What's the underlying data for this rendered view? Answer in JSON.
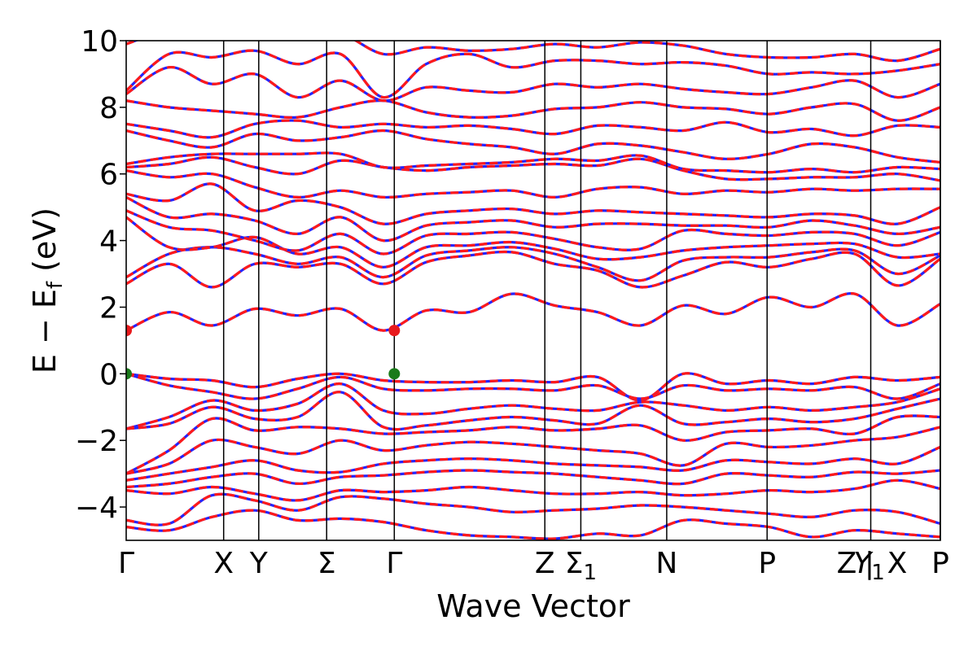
{
  "chart_data": {
    "type": "line",
    "title": "",
    "xlabel": "Wave Vector",
    "ylabel": {
      "prefix": "E − E",
      "sub": "f",
      "suffix": " (eV)"
    },
    "ylim": [
      -5,
      10
    ],
    "yticks": [
      -4,
      -2,
      0,
      2,
      4,
      6,
      8,
      10
    ],
    "ytick_labels": [
      "−4",
      "−2",
      "0",
      "2",
      "4",
      "6",
      "8",
      "10"
    ],
    "xlim": [
      0,
      1
    ],
    "kpoints": [
      {
        "label": "Γ",
        "pos": 0.0
      },
      {
        "label": "X",
        "pos": 0.1197
      },
      {
        "label": "Y",
        "pos": 0.1628
      },
      {
        "label": "Σ",
        "pos": 0.2462
      },
      {
        "label": "Γ",
        "pos": 0.3293
      },
      {
        "label": "Z",
        "pos": 0.5142
      },
      {
        "label": "Σ",
        "sub": "1",
        "pos": 0.5584
      },
      {
        "label": "N",
        "pos": 0.6639
      },
      {
        "label": "P",
        "pos": 0.7872
      },
      {
        "label": "Y",
        "sub": "1",
        "pos": 0.9145,
        "italic": true
      },
      {
        "label": "Z",
        "pos": 0.9145,
        "align": "after"
      },
      {
        "label": "|",
        "pos": 0.9998,
        "align": "sep"
      },
      {
        "label": "X",
        "pos": 0.9998,
        "align": "after2"
      },
      {
        "label": "P",
        "pos": 1.0
      }
    ],
    "boundaries": [
      0.1197,
      0.1628,
      0.2462,
      0.3293,
      0.5142,
      0.5584,
      0.6639,
      0.7872,
      0.9145,
      0.9998
    ],
    "special_points": [
      {
        "x": 0.0,
        "y": 1.3,
        "color": "#e8191c"
      },
      {
        "x": 0.3293,
        "y": 1.3,
        "color": "#e8191c"
      },
      {
        "x": 0.0,
        "y": 0.0,
        "color": "#1a7a1a"
      },
      {
        "x": 0.3293,
        "y": 0.0,
        "color": "#1a7a1a"
      }
    ],
    "series": [
      {
        "color": "#2424ff",
        "style": "solid"
      },
      {
        "color": "#ff1a1a",
        "style": "dashed"
      }
    ],
    "bands": [
      [
        1.3,
        1.85,
        1.45,
        1.95,
        1.75,
        1.95,
        1.3,
        1.9,
        1.85,
        2.4,
        2.05,
        1.85,
        1.45,
        2.05,
        1.8,
        2.3,
        2.0,
        2.4,
        1.45,
        2.1
      ],
      [
        0.0,
        -0.15,
        -0.2,
        -0.4,
        -0.15,
        0.0,
        -0.2,
        -0.25,
        -0.25,
        -0.2,
        -0.25,
        -0.1,
        -0.8,
        0.0,
        -0.3,
        -0.2,
        -0.3,
        -0.1,
        -0.2,
        -0.1
      ],
      [
        0.0,
        -0.35,
        -0.55,
        -0.75,
        -0.45,
        -0.1,
        -0.45,
        -0.5,
        -0.45,
        -0.45,
        -0.5,
        -0.35,
        -0.75,
        -0.35,
        -0.5,
        -0.45,
        -0.5,
        -0.4,
        -0.75,
        -0.3
      ],
      [
        -1.65,
        -1.3,
        -0.8,
        -1.1,
        -0.9,
        -0.3,
        -1.1,
        -1.2,
        -1.05,
        -0.95,
        -1.05,
        -1.1,
        -0.85,
        -0.95,
        -1.1,
        -1.0,
        -1.1,
        -1.0,
        -0.85,
        -0.45
      ],
      [
        -1.65,
        -1.5,
        -1.0,
        -1.35,
        -1.3,
        -0.55,
        -1.6,
        -1.55,
        -1.4,
        -1.3,
        -1.4,
        -1.5,
        -0.95,
        -1.5,
        -1.45,
        -1.35,
        -1.45,
        -1.35,
        -1.05,
        -0.75
      ],
      [
        -3.0,
        -2.3,
        -1.35,
        -1.7,
        -1.6,
        -1.65,
        -1.8,
        -1.75,
        -1.7,
        -1.6,
        -1.7,
        -1.65,
        -1.55,
        -2.0,
        -1.75,
        -1.7,
        -1.65,
        -1.8,
        -1.3,
        -1.3
      ],
      [
        -3.0,
        -2.7,
        -2.0,
        -2.2,
        -2.4,
        -2.0,
        -2.3,
        -2.15,
        -2.05,
        -2.1,
        -2.2,
        -2.3,
        -2.4,
        -2.75,
        -2.1,
        -2.2,
        -2.15,
        -2.0,
        -1.9,
        -1.6
      ],
      [
        -3.2,
        -3.0,
        -2.8,
        -2.6,
        -2.9,
        -2.95,
        -2.7,
        -2.6,
        -2.55,
        -2.6,
        -2.7,
        -2.75,
        -2.8,
        -2.9,
        -2.6,
        -2.65,
        -2.7,
        -2.55,
        -2.7,
        -2.2
      ],
      [
        -3.4,
        -3.3,
        -3.1,
        -3.0,
        -3.3,
        -3.1,
        -3.05,
        -2.95,
        -2.9,
        -2.95,
        -3.0,
        -3.1,
        -3.2,
        -3.3,
        -3.0,
        -3.05,
        -3.1,
        -2.95,
        -3.0,
        -2.9
      ],
      [
        -3.5,
        -3.6,
        -3.4,
        -3.6,
        -3.8,
        -3.5,
        -3.55,
        -3.5,
        -3.4,
        -3.5,
        -3.6,
        -3.6,
        -3.55,
        -3.65,
        -3.6,
        -3.5,
        -3.55,
        -3.45,
        -3.2,
        -3.45
      ],
      [
        -4.4,
        -4.5,
        -3.65,
        -3.8,
        -4.1,
        -3.7,
        -3.75,
        -3.9,
        -4.0,
        -4.15,
        -4.1,
        -4.05,
        -3.95,
        -4.0,
        -4.1,
        -4.2,
        -4.3,
        -4.1,
        -4.15,
        -4.5
      ],
      [
        -4.6,
        -4.7,
        -4.3,
        -4.1,
        -4.4,
        -4.35,
        -4.45,
        -4.7,
        -4.85,
        -4.9,
        -4.95,
        -4.8,
        -4.85,
        -4.4,
        -4.5,
        -4.6,
        -4.9,
        -4.7,
        -4.8,
        -4.9
      ],
      [
        2.7,
        3.3,
        2.6,
        3.3,
        3.2,
        3.3,
        2.7,
        3.35,
        3.55,
        3.65,
        3.3,
        3.1,
        2.6,
        2.95,
        3.35,
        3.2,
        3.45,
        3.6,
        2.65,
        3.45
      ],
      [
        2.9,
        3.6,
        3.8,
        3.6,
        3.3,
        3.5,
        2.9,
        3.55,
        3.7,
        3.8,
        3.6,
        3.2,
        2.8,
        3.4,
        3.5,
        3.5,
        3.65,
        3.7,
        3.0,
        3.55
      ],
      [
        4.7,
        3.8,
        3.8,
        4.1,
        3.6,
        3.8,
        3.2,
        3.8,
        3.85,
        3.95,
        3.75,
        3.45,
        3.5,
        3.7,
        3.8,
        3.85,
        3.9,
        3.9,
        3.5,
        3.6
      ],
      [
        4.9,
        4.4,
        4.3,
        4.0,
        3.7,
        4.2,
        3.6,
        4.15,
        4.2,
        4.25,
        4.05,
        3.8,
        3.75,
        4.3,
        4.2,
        4.15,
        4.25,
        4.2,
        3.85,
        4.25
      ],
      [
        5.3,
        4.7,
        4.8,
        4.6,
        4.2,
        4.7,
        4.0,
        4.45,
        4.55,
        4.6,
        4.4,
        4.5,
        4.5,
        4.45,
        4.45,
        4.4,
        4.6,
        4.45,
        4.2,
        4.4
      ],
      [
        5.4,
        5.2,
        5.7,
        4.9,
        5.2,
        5.0,
        4.5,
        4.8,
        4.9,
        4.95,
        4.8,
        4.9,
        4.85,
        4.8,
        4.75,
        4.7,
        4.8,
        4.75,
        4.5,
        5.0
      ],
      [
        6.1,
        5.9,
        6.0,
        5.6,
        5.3,
        5.5,
        5.3,
        5.4,
        5.45,
        5.5,
        5.3,
        5.55,
        5.6,
        5.4,
        5.5,
        5.45,
        5.55,
        5.5,
        5.55,
        5.55
      ],
      [
        6.2,
        6.3,
        6.5,
        6.2,
        6.0,
        6.4,
        6.2,
        6.1,
        6.2,
        6.25,
        6.3,
        6.25,
        6.45,
        6.1,
        5.85,
        5.85,
        5.9,
        5.9,
        6.0,
        5.8
      ],
      [
        6.3,
        6.5,
        6.6,
        6.6,
        6.6,
        6.6,
        6.2,
        6.25,
        6.3,
        6.35,
        6.45,
        6.4,
        6.55,
        6.15,
        6.1,
        6.05,
        6.15,
        6.05,
        6.2,
        6.15
      ],
      [
        7.3,
        7.0,
        6.8,
        7.2,
        7.0,
        7.1,
        7.3,
        7.05,
        6.9,
        6.8,
        6.6,
        6.9,
        6.85,
        6.65,
        6.45,
        6.6,
        6.9,
        6.8,
        6.5,
        6.35
      ],
      [
        7.5,
        7.3,
        7.1,
        7.5,
        7.6,
        7.4,
        7.5,
        7.4,
        7.45,
        7.35,
        7.2,
        7.45,
        7.4,
        7.3,
        7.55,
        7.25,
        7.35,
        7.15,
        7.45,
        7.4
      ],
      [
        8.2,
        8.0,
        7.9,
        7.8,
        7.7,
        8.0,
        8.2,
        7.85,
        7.7,
        7.75,
        7.95,
        8.0,
        8.15,
        8.0,
        7.95,
        7.8,
        8.0,
        8.1,
        7.6,
        8.0
      ],
      [
        8.4,
        9.2,
        8.7,
        9.0,
        8.3,
        8.8,
        8.2,
        8.6,
        8.5,
        8.45,
        8.7,
        8.6,
        8.7,
        8.55,
        8.45,
        8.4,
        8.6,
        8.8,
        8.3,
        8.7
      ],
      [
        8.5,
        9.6,
        9.5,
        9.7,
        9.3,
        9.6,
        8.3,
        9.3,
        9.6,
        9.2,
        9.4,
        9.4,
        9.3,
        9.35,
        9.25,
        9.0,
        9.05,
        9.0,
        9.1,
        9.3
      ],
      [
        9.9,
        10.3,
        10.2,
        10.2,
        10.1,
        10.2,
        9.6,
        9.8,
        9.7,
        9.75,
        9.9,
        9.8,
        9.95,
        9.85,
        9.6,
        9.5,
        9.5,
        9.6,
        9.4,
        9.75
      ]
    ]
  }
}
